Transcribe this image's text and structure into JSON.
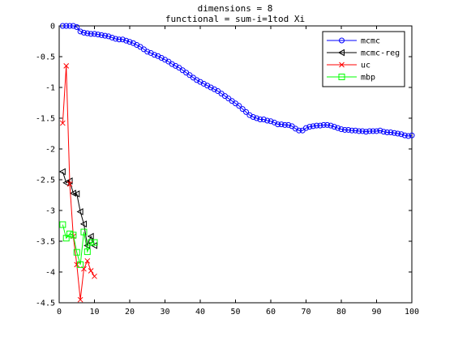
{
  "chart_data": {
    "type": "line",
    "title": [
      "dimensions = 8",
      "functional = sum-i=1tod Xi"
    ],
    "xlabel": "",
    "ylabel": "",
    "xlim": [
      0,
      100
    ],
    "ylim": [
      -4.5,
      0
    ],
    "xticks": [
      "0",
      "10",
      "20",
      "30",
      "40",
      "50",
      "60",
      "70",
      "80",
      "90",
      "100"
    ],
    "yticks": [
      "0",
      "-0.5",
      "-1",
      "-1.5",
      "-2",
      "-2.5",
      "-3",
      "-3.5",
      "-4",
      "-4.5"
    ],
    "grid": false,
    "legend": "top-right",
    "series": [
      {
        "name": "mcmc",
        "color": "#0000ff",
        "marker": "circle",
        "x": [
          1,
          2,
          3,
          4,
          5,
          6,
          7,
          8,
          9,
          10,
          11,
          12,
          13,
          14,
          15,
          16,
          17,
          18,
          19,
          20,
          21,
          22,
          23,
          24,
          25,
          26,
          27,
          28,
          29,
          30,
          31,
          32,
          33,
          34,
          35,
          36,
          37,
          38,
          39,
          40,
          41,
          42,
          43,
          44,
          45,
          46,
          47,
          48,
          49,
          50,
          51,
          52,
          53,
          54,
          55,
          56,
          57,
          58,
          59,
          60,
          61,
          62,
          63,
          64,
          65,
          66,
          67,
          68,
          69,
          70,
          71,
          72,
          73,
          74,
          75,
          76,
          77,
          78,
          79,
          80,
          81,
          82,
          83,
          84,
          85,
          86,
          87,
          88,
          89,
          90,
          91,
          92,
          93,
          94,
          95,
          96,
          97,
          98,
          99,
          100
        ],
        "y": [
          0,
          0,
          0,
          0,
          -0.02,
          -0.09,
          -0.11,
          -0.12,
          -0.13,
          -0.13,
          -0.14,
          -0.15,
          -0.16,
          -0.17,
          -0.19,
          -0.21,
          -0.22,
          -0.22,
          -0.24,
          -0.26,
          -0.28,
          -0.31,
          -0.34,
          -0.38,
          -0.42,
          -0.44,
          -0.47,
          -0.49,
          -0.52,
          -0.55,
          -0.58,
          -0.62,
          -0.65,
          -0.68,
          -0.72,
          -0.76,
          -0.8,
          -0.84,
          -0.88,
          -0.91,
          -0.94,
          -0.97,
          -1.0,
          -1.03,
          -1.06,
          -1.1,
          -1.14,
          -1.18,
          -1.22,
          -1.26,
          -1.3,
          -1.35,
          -1.4,
          -1.45,
          -1.48,
          -1.5,
          -1.52,
          -1.52,
          -1.54,
          -1.55,
          -1.57,
          -1.6,
          -1.6,
          -1.61,
          -1.61,
          -1.63,
          -1.67,
          -1.7,
          -1.7,
          -1.66,
          -1.64,
          -1.63,
          -1.62,
          -1.62,
          -1.61,
          -1.61,
          -1.62,
          -1.64,
          -1.66,
          -1.68,
          -1.69,
          -1.69,
          -1.7,
          -1.7,
          -1.71,
          -1.71,
          -1.72,
          -1.71,
          -1.71,
          -1.71,
          -1.7,
          -1.72,
          -1.73,
          -1.73,
          -1.74,
          -1.75,
          -1.76,
          -1.78,
          -1.79,
          -1.78
        ]
      },
      {
        "name": "mcmc-reg",
        "color": "#000000",
        "marker": "triangle-left",
        "x": [
          1,
          2,
          3,
          4,
          5,
          6,
          7,
          8,
          9,
          10
        ],
        "y": [
          -2.37,
          -2.55,
          -2.52,
          -2.72,
          -2.73,
          -3.02,
          -3.22,
          -3.57,
          -3.42,
          -3.57
        ]
      },
      {
        "name": "uc",
        "color": "#ff0000",
        "marker": "x",
        "x": [
          1,
          2,
          3,
          4,
          5,
          6,
          7,
          8,
          9,
          10
        ],
        "y": [
          -1.58,
          -0.65,
          -2.57,
          -3.42,
          -3.88,
          -4.45,
          -3.95,
          -3.82,
          -3.98,
          -4.07
        ]
      },
      {
        "name": "mbp",
        "color": "#00ff00",
        "marker": "square",
        "x": [
          1,
          2,
          3,
          4,
          5,
          6,
          7,
          8,
          9,
          10
        ],
        "y": [
          -3.23,
          -3.45,
          -3.38,
          -3.4,
          -3.68,
          -3.88,
          -3.35,
          -3.67,
          -3.52,
          -3.52
        ]
      }
    ]
  }
}
